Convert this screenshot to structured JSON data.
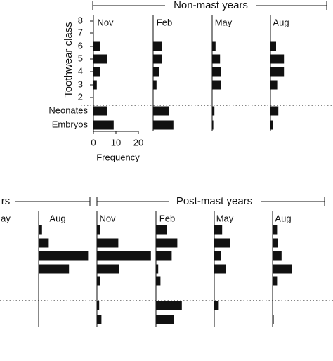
{
  "chart_data": {
    "type": "bar",
    "orientation": "horizontal",
    "color": "#111111",
    "y_label": "Toothwear class",
    "x_label": "Frequency",
    "xlim": [
      0,
      20
    ],
    "xticks": [
      0,
      10,
      20
    ],
    "categories": [
      "8",
      "7",
      "6",
      "5",
      "4",
      "3",
      "2",
      "Neonates",
      "Embryos"
    ],
    "groups": [
      {
        "title": "Non-mast years",
        "panels": [
          {
            "title": "Nov",
            "values": [
              0,
              0,
              3,
              6,
              3,
              1.5,
              0,
              6,
              9
            ]
          },
          {
            "title": "Feb",
            "values": [
              0,
              0,
              4,
              4,
              2.5,
              1.5,
              0,
              7,
              9
            ]
          },
          {
            "title": "May",
            "values": [
              0,
              0,
              1.5,
              3.5,
              4,
              4,
              0,
              1,
              0.5
            ]
          },
          {
            "title": "Aug",
            "values": [
              0,
              0,
              2.5,
              6,
              6,
              3,
              0,
              3.5,
              1
            ]
          }
        ]
      },
      {
        "title": "rs",
        "panels": [
          {
            "title": "ay"
          },
          {
            "title": "Aug",
            "values": [
              0,
              0,
              1.5,
              4.5,
              22,
              13.5,
              0,
              0,
              0
            ]
          }
        ]
      },
      {
        "title": "Post-mast years",
        "panels": [
          {
            "title": "Nov",
            "values": [
              0,
              0,
              1.5,
              9.5,
              24,
              10,
              1.5,
              1,
              2
            ]
          },
          {
            "title": "Feb",
            "values": [
              0,
              0,
              5,
              9.5,
              7,
              1,
              2,
              11.5,
              8
            ]
          },
          {
            "title": "May",
            "values": [
              0,
              0,
              3.5,
              7,
              3,
              5,
              0,
              2,
              0
            ]
          },
          {
            "title": "Aug",
            "values": [
              0,
              0,
              2,
              2.5,
              4,
              8.5,
              2,
              0,
              0.5
            ]
          }
        ]
      }
    ]
  }
}
